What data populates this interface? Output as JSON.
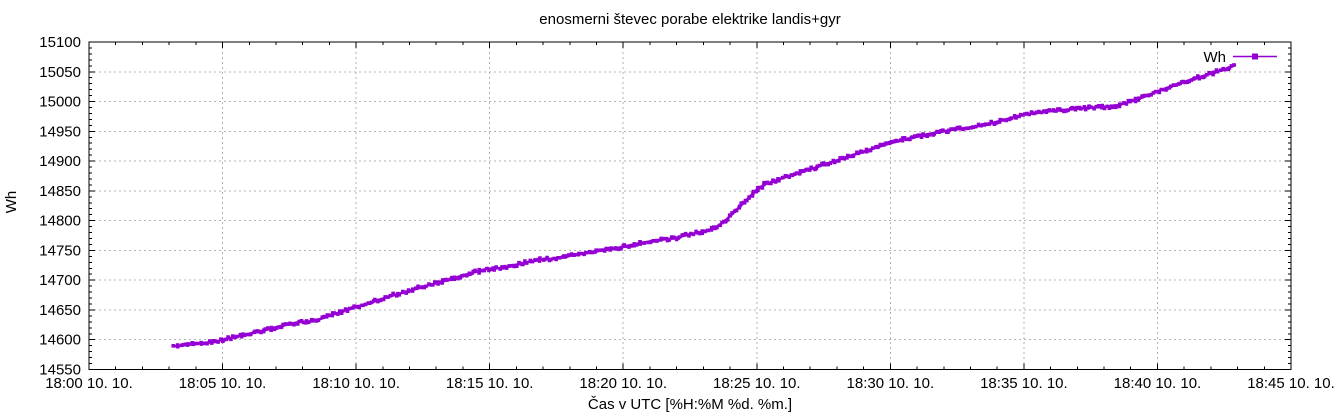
{
  "chart_data": {
    "type": "line",
    "title": "enosmerni števec porabe elektrike landis+gyr",
    "xlabel": "Čas v UTC [%H:%M %d. %m.]",
    "ylabel": "Wh",
    "background": "#ffffff",
    "border_color": "#000000",
    "grid": {
      "show": true,
      "style": "dashed",
      "color": "#b3b3b3",
      "on": "major-ticks"
    },
    "legend": {
      "position": "top-right-inside",
      "entries": [
        {
          "label": "Wh",
          "color": "#9400d3",
          "marker": "filled-square",
          "style": "linespoints"
        }
      ]
    },
    "x_axis": {
      "unit": "time UTC, minutes after 18:00 on 10. 10.",
      "range_minutes": [
        0,
        45
      ],
      "major_tick_step_minutes": 5,
      "minor_tick_step_minutes": 1,
      "tick_labels": [
        "18:00 10. 10.",
        "18:05 10. 10.",
        "18:10 10. 10.",
        "18:15 10. 10.",
        "18:20 10. 10.",
        "18:25 10. 10.",
        "18:30 10. 10.",
        "18:35 10. 10.",
        "18:40 10. 10.",
        "18:45 10. 10."
      ]
    },
    "y_axis": {
      "unit": "Wh",
      "range": [
        14550,
        15100
      ],
      "major_tick_step": 50,
      "minor_tick_step": 10,
      "tick_labels": [
        "14550",
        "14600",
        "14650",
        "14700",
        "14750",
        "14800",
        "14850",
        "14900",
        "14950",
        "15000",
        "15050",
        "15100"
      ]
    },
    "series": [
      {
        "name": "Wh",
        "color": "#9400d3",
        "style": "dense-linespoints",
        "points_minutes_wh": [
          [
            3.2,
            14589
          ],
          [
            3.6,
            14591
          ],
          [
            4.0,
            14593
          ],
          [
            4.4,
            14595
          ],
          [
            4.7,
            14596
          ],
          [
            5.0,
            14600
          ],
          [
            5.5,
            14605
          ],
          [
            6.0,
            14610
          ],
          [
            6.5,
            14615
          ],
          [
            7.0,
            14621
          ],
          [
            7.5,
            14626
          ],
          [
            7.9,
            14630
          ],
          [
            8.4,
            14631
          ],
          [
            9.0,
            14640
          ],
          [
            9.5,
            14648
          ],
          [
            10.0,
            14655
          ],
          [
            10.5,
            14662
          ],
          [
            11.0,
            14669
          ],
          [
            11.5,
            14676
          ],
          [
            12.0,
            14682
          ],
          [
            12.5,
            14689
          ],
          [
            13.0,
            14695
          ],
          [
            13.5,
            14701
          ],
          [
            14.0,
            14708
          ],
          [
            14.5,
            14714
          ],
          [
            14.9,
            14719
          ],
          [
            15.6,
            14721
          ],
          [
            16.0,
            14726
          ],
          [
            16.5,
            14731
          ],
          [
            17.0,
            14735
          ],
          [
            17.4,
            14736
          ],
          [
            18.0,
            14741
          ],
          [
            18.5,
            14745
          ],
          [
            19.0,
            14749
          ],
          [
            19.6,
            14752
          ],
          [
            20.0,
            14756
          ],
          [
            20.6,
            14762
          ],
          [
            21.0,
            14765
          ],
          [
            21.6,
            14769
          ],
          [
            21.9,
            14770
          ],
          [
            22.4,
            14776
          ],
          [
            23.0,
            14782
          ],
          [
            23.4,
            14787
          ],
          [
            23.8,
            14799
          ],
          [
            24.2,
            14816
          ],
          [
            24.6,
            14834
          ],
          [
            25.0,
            14852
          ],
          [
            25.3,
            14861
          ],
          [
            26.0,
            14872
          ],
          [
            26.5,
            14879
          ],
          [
            27.0,
            14886
          ],
          [
            27.5,
            14894
          ],
          [
            28.0,
            14901
          ],
          [
            28.5,
            14909
          ],
          [
            29.0,
            14916
          ],
          [
            29.5,
            14923
          ],
          [
            30.0,
            14930
          ],
          [
            30.5,
            14936
          ],
          [
            31.0,
            14941
          ],
          [
            31.5,
            14946
          ],
          [
            32.0,
            14950
          ],
          [
            32.5,
            14954
          ],
          [
            33.0,
            14956
          ],
          [
            33.5,
            14961
          ],
          [
            34.0,
            14966
          ],
          [
            34.5,
            14972
          ],
          [
            35.0,
            14978
          ],
          [
            35.5,
            14981
          ],
          [
            36.0,
            14984
          ],
          [
            36.5,
            14986
          ],
          [
            37.0,
            14988
          ],
          [
            37.6,
            14990
          ],
          [
            38.4,
            14992
          ],
          [
            39.0,
            15000
          ],
          [
            39.5,
            15008
          ],
          [
            40.0,
            15017
          ],
          [
            40.5,
            15025
          ],
          [
            41.0,
            15033
          ],
          [
            41.5,
            15040
          ],
          [
            42.0,
            15047
          ],
          [
            42.5,
            15054
          ],
          [
            42.9,
            15061
          ]
        ]
      }
    ]
  }
}
